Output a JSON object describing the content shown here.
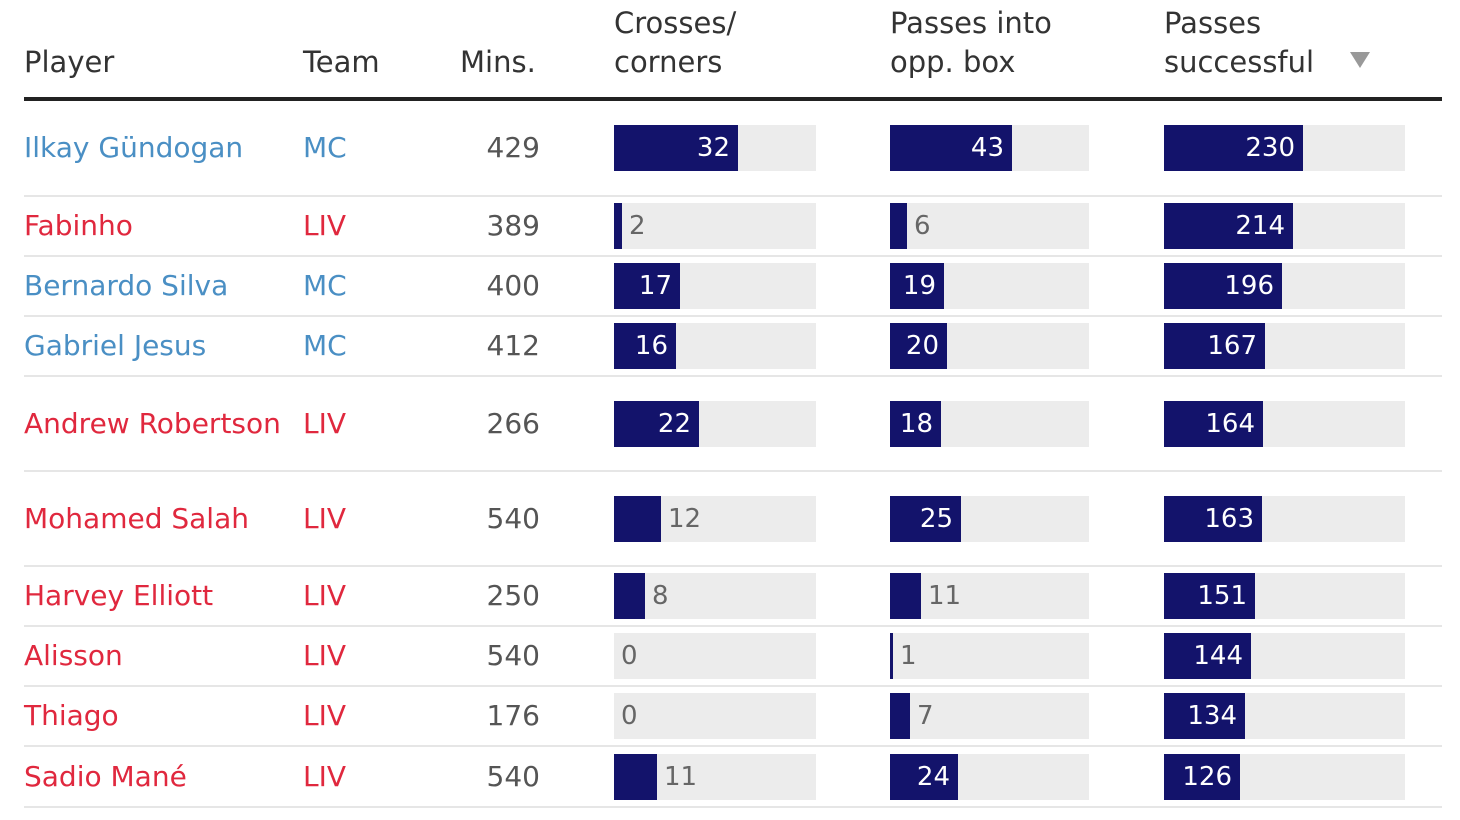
{
  "headers": {
    "player": "Player",
    "team": "Team",
    "mins": "Mins.",
    "crosses": [
      "Crosses/",
      "corners"
    ],
    "passes_box": [
      "Passes into",
      "opp. box"
    ],
    "passes_success": [
      "Passes",
      "successful"
    ]
  },
  "team_colors": {
    "MC": "#4a8fc4",
    "LIV": "#e0283e"
  },
  "bar_color": "#13136b",
  "track_color": "#ececec",
  "chart_data": {
    "type": "table",
    "columns": [
      "Player",
      "Team",
      "Mins.",
      "Crosses/ corners",
      "Passes into opp. box",
      "Passes successful"
    ],
    "sorted_by": "Passes successful",
    "sort_order": "descending",
    "scales": {
      "crosses": 52,
      "passes_box": 70,
      "passes_success": 400
    },
    "rows": [
      {
        "player": "Ilkay Gündogan",
        "team": "MC",
        "mins": 429,
        "crosses": 32,
        "passes_box": 43,
        "passes_success": 230
      },
      {
        "player": "Fabinho",
        "team": "LIV",
        "mins": 389,
        "crosses": 2,
        "passes_box": 6,
        "passes_success": 214
      },
      {
        "player": "Bernardo Silva",
        "team": "MC",
        "mins": 400,
        "crosses": 17,
        "passes_box": 19,
        "passes_success": 196
      },
      {
        "player": "Gabriel Jesus",
        "team": "MC",
        "mins": 412,
        "crosses": 16,
        "passes_box": 20,
        "passes_success": 167
      },
      {
        "player": "Andrew Robertson",
        "team": "LIV",
        "mins": 266,
        "crosses": 22,
        "passes_box": 18,
        "passes_success": 164
      },
      {
        "player": "Mohamed Salah",
        "team": "LIV",
        "mins": 540,
        "crosses": 12,
        "passes_box": 25,
        "passes_success": 163
      },
      {
        "player": "Harvey Elliott",
        "team": "LIV",
        "mins": 250,
        "crosses": 8,
        "passes_box": 11,
        "passes_success": 151
      },
      {
        "player": "Alisson",
        "team": "LIV",
        "mins": 540,
        "crosses": 0,
        "passes_box": 1,
        "passes_success": 144
      },
      {
        "player": "Thiago",
        "team": "LIV",
        "mins": 176,
        "crosses": 0,
        "passes_box": 7,
        "passes_success": 134
      },
      {
        "player": "Sadio Mané",
        "team": "LIV",
        "mins": 540,
        "crosses": 11,
        "passes_box": 24,
        "passes_success": 126
      }
    ]
  }
}
